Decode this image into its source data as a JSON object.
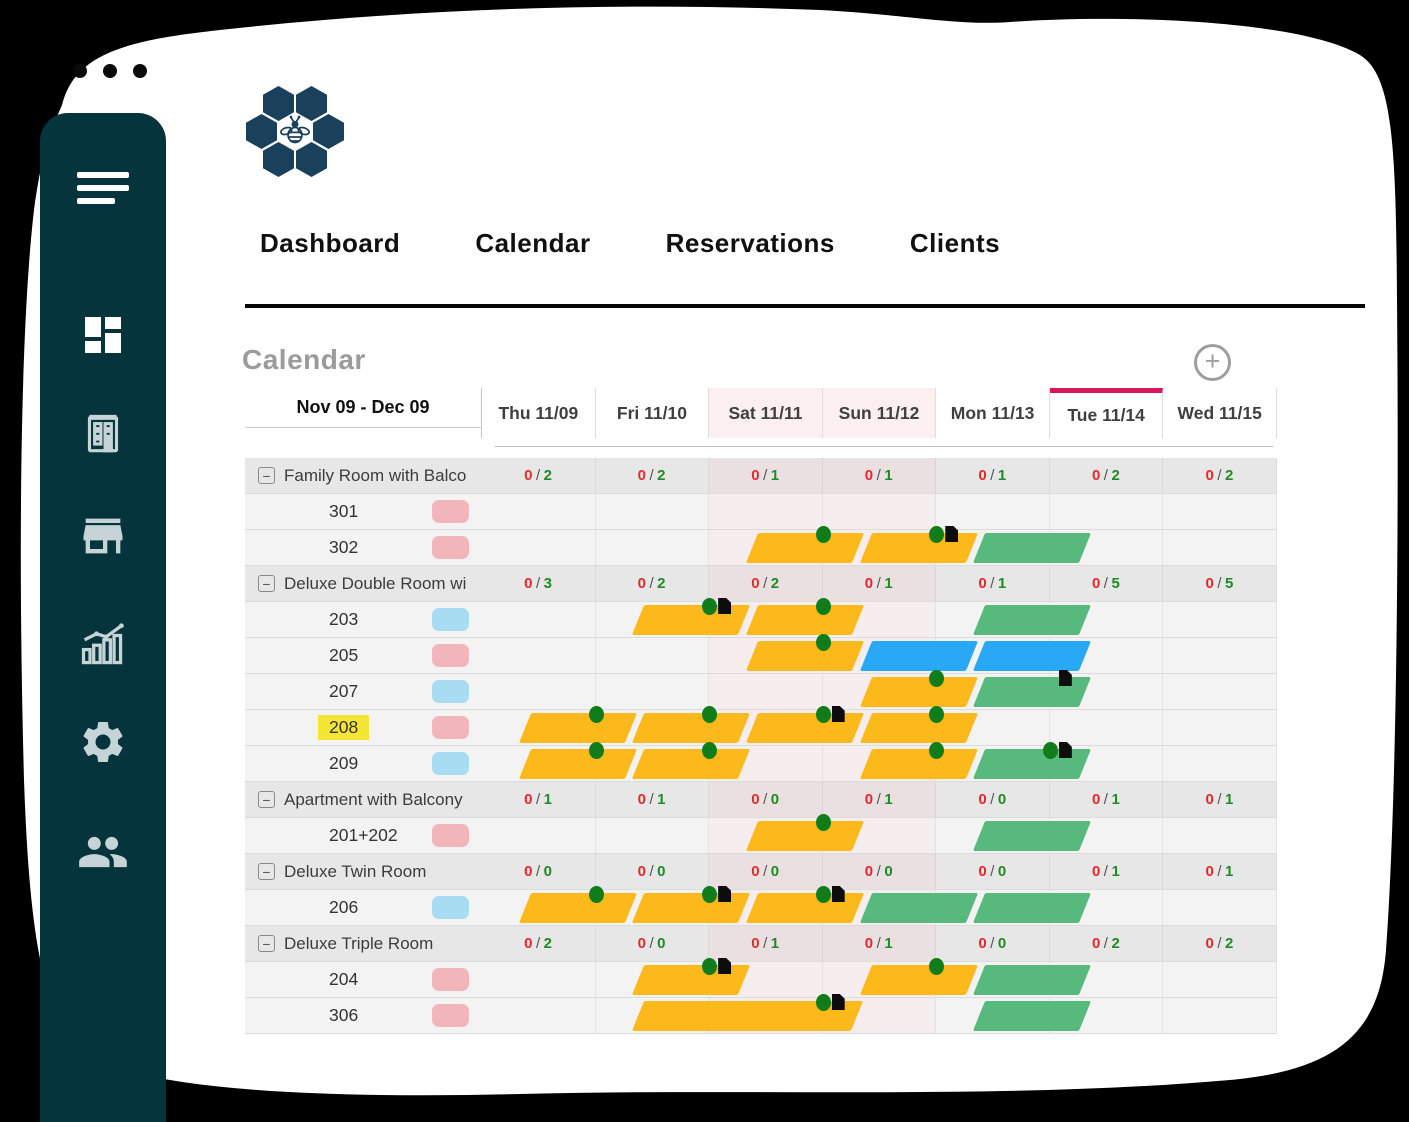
{
  "window": {
    "control_dots": 3
  },
  "nav": {
    "items": [
      {
        "label": "Dashboard"
      },
      {
        "label": "Calendar"
      },
      {
        "label": "Reservations"
      },
      {
        "label": "Clients"
      }
    ]
  },
  "page": {
    "title": "Calendar",
    "add_label": "+"
  },
  "sidebar": {
    "icons": [
      "menu-icon",
      "dashboard-icon",
      "hotel-icon",
      "storefront-icon",
      "analytics-icon",
      "settings-icon",
      "users-icon"
    ]
  },
  "calendar": {
    "range_label": "Nov 09 - Dec 09",
    "collapse_glyph": "−",
    "days": [
      {
        "label": "Thu 11/09",
        "weekend": false,
        "today": false
      },
      {
        "label": "Fri 11/10",
        "weekend": false,
        "today": false
      },
      {
        "label": "Sat 11/11",
        "weekend": true,
        "today": false
      },
      {
        "label": "Sun 11/12",
        "weekend": true,
        "today": false
      },
      {
        "label": "Mon 11/13",
        "weekend": false,
        "today": false
      },
      {
        "label": "Tue 11/14",
        "weekend": false,
        "today": true
      },
      {
        "label": "Wed 11/15",
        "weekend": false,
        "today": false
      }
    ],
    "rows": [
      {
        "type": "group",
        "name": "Family Room with Balco",
        "availability": [
          "0/2",
          "0/2",
          "0/1",
          "0/1",
          "0/1",
          "0/2",
          "0/2"
        ]
      },
      {
        "type": "room",
        "name": "301",
        "badge": "pink",
        "bars": []
      },
      {
        "type": "room",
        "name": "302",
        "badge": "pink",
        "bars": [
          {
            "start": 2,
            "len": 1,
            "color": "yellow",
            "markers": [
              {
                "type": "dot",
                "at": 3
              }
            ]
          },
          {
            "start": 3,
            "len": 1,
            "color": "yellow",
            "markers": [
              {
                "type": "dot",
                "at": 4
              },
              {
                "type": "doc",
                "at": 4
              }
            ]
          },
          {
            "start": 4,
            "len": 1,
            "color": "green",
            "markers": []
          }
        ]
      },
      {
        "type": "group",
        "name": "Deluxe Double Room wi",
        "availability": [
          "0/3",
          "0/2",
          "0/2",
          "0/1",
          "0/1",
          "0/5",
          "0/5"
        ]
      },
      {
        "type": "room",
        "name": "203",
        "badge": "blue",
        "bars": [
          {
            "start": 1,
            "len": 1,
            "color": "yellow",
            "markers": [
              {
                "type": "dot",
                "at": 2
              },
              {
                "type": "doc",
                "at": 2
              }
            ]
          },
          {
            "start": 2,
            "len": 1,
            "color": "yellow",
            "markers": [
              {
                "type": "dot",
                "at": 3
              }
            ]
          },
          {
            "start": 4,
            "len": 1,
            "color": "green",
            "markers": []
          }
        ]
      },
      {
        "type": "room",
        "name": "205",
        "badge": "pink",
        "bars": [
          {
            "start": 2,
            "len": 1,
            "color": "yellow",
            "markers": [
              {
                "type": "dot",
                "at": 3
              }
            ]
          },
          {
            "start": 3,
            "len": 1,
            "color": "blue",
            "markers": []
          },
          {
            "start": 4,
            "len": 1,
            "color": "blue",
            "markers": []
          }
        ]
      },
      {
        "type": "room",
        "name": "207",
        "badge": "blue",
        "bars": [
          {
            "start": 3,
            "len": 1,
            "color": "yellow",
            "markers": [
              {
                "type": "dot",
                "at": 4
              }
            ]
          },
          {
            "start": 4,
            "len": 1,
            "color": "green",
            "markers": [
              {
                "type": "doc",
                "at": 5
              }
            ]
          }
        ]
      },
      {
        "type": "room",
        "name": "208",
        "badge": "pink",
        "highlight": true,
        "bars": [
          {
            "start": 0,
            "len": 1,
            "color": "yellow",
            "markers": [
              {
                "type": "dot",
                "at": 1
              }
            ]
          },
          {
            "start": 1,
            "len": 1,
            "color": "yellow",
            "markers": [
              {
                "type": "dot",
                "at": 2
              }
            ]
          },
          {
            "start": 2,
            "len": 1,
            "color": "yellow",
            "markers": [
              {
                "type": "dot",
                "at": 3
              },
              {
                "type": "doc",
                "at": 3
              }
            ]
          },
          {
            "start": 3,
            "len": 1,
            "color": "yellow",
            "markers": [
              {
                "type": "dot",
                "at": 4
              }
            ]
          }
        ]
      },
      {
        "type": "room",
        "name": "209",
        "badge": "blue",
        "bars": [
          {
            "start": 0,
            "len": 1,
            "color": "yellow",
            "markers": [
              {
                "type": "dot",
                "at": 1
              }
            ]
          },
          {
            "start": 1,
            "len": 1,
            "color": "yellow",
            "markers": [
              {
                "type": "dot",
                "at": 2
              }
            ]
          },
          {
            "start": 3,
            "len": 1,
            "color": "yellow",
            "markers": [
              {
                "type": "dot",
                "at": 4
              }
            ]
          },
          {
            "start": 4,
            "len": 1,
            "color": "green",
            "markers": [
              {
                "type": "dot",
                "at": 5
              },
              {
                "type": "doc",
                "at": 5
              }
            ]
          }
        ]
      },
      {
        "type": "group",
        "name": "Apartment with Balcony",
        "availability": [
          "0/1",
          "0/1",
          "0/0",
          "0/1",
          "0/0",
          "0/1",
          "0/1"
        ]
      },
      {
        "type": "room",
        "name": "201+202",
        "badge": "pink",
        "bars": [
          {
            "start": 2,
            "len": 1,
            "color": "yellow",
            "markers": [
              {
                "type": "dot",
                "at": 3
              }
            ]
          },
          {
            "start": 4,
            "len": 1,
            "color": "green",
            "markers": []
          }
        ]
      },
      {
        "type": "group",
        "name": "Deluxe Twin Room",
        "availability": [
          "0/0",
          "0/0",
          "0/0",
          "0/0",
          "0/0",
          "0/1",
          "0/1"
        ]
      },
      {
        "type": "room",
        "name": "206",
        "badge": "blue",
        "bars": [
          {
            "start": 0,
            "len": 1,
            "color": "yellow",
            "markers": [
              {
                "type": "dot",
                "at": 1
              }
            ]
          },
          {
            "start": 1,
            "len": 1,
            "color": "yellow",
            "markers": [
              {
                "type": "dot",
                "at": 2
              },
              {
                "type": "doc",
                "at": 2
              }
            ]
          },
          {
            "start": 2,
            "len": 1,
            "color": "yellow",
            "markers": [
              {
                "type": "dot",
                "at": 3
              },
              {
                "type": "doc",
                "at": 3
              }
            ]
          },
          {
            "start": 3,
            "len": 1,
            "color": "green",
            "markers": []
          },
          {
            "start": 4,
            "len": 1,
            "color": "green",
            "markers": []
          }
        ]
      },
      {
        "type": "group",
        "name": "Deluxe Triple Room",
        "availability": [
          "0/2",
          "0/0",
          "0/1",
          "0/1",
          "0/0",
          "0/2",
          "0/2"
        ]
      },
      {
        "type": "room",
        "name": "204",
        "badge": "pink",
        "bars": [
          {
            "start": 1,
            "len": 1,
            "color": "yellow",
            "markers": [
              {
                "type": "dot",
                "at": 2
              },
              {
                "type": "doc",
                "at": 2
              }
            ]
          },
          {
            "start": 3,
            "len": 1,
            "color": "yellow",
            "markers": [
              {
                "type": "dot",
                "at": 4
              }
            ]
          },
          {
            "start": 4,
            "len": 1,
            "color": "green",
            "markers": []
          }
        ]
      },
      {
        "type": "room",
        "name": "306",
        "badge": "pink",
        "bars": [
          {
            "start": 1,
            "len": 2,
            "color": "yellow",
            "markers": [
              {
                "type": "dot",
                "at": 3
              },
              {
                "type": "doc",
                "at": 3
              }
            ]
          },
          {
            "start": 4,
            "len": 1,
            "color": "green",
            "markers": []
          }
        ]
      }
    ]
  },
  "colors": {
    "accent_pink": "#D81760",
    "bar_yellow": "#FBB91C",
    "bar_green": "#57B97B",
    "bar_blue": "#29A9F5",
    "dot_green": "#107D1A",
    "avail_red": "#E8272C",
    "avail_green": "#1F8B26",
    "sidebar_teal": "#06343D",
    "logo_navy": "#1A405C",
    "badge_pink": "#F2B6BA",
    "badge_blue": "#A8DCF2",
    "room_highlight": "#F5E636"
  }
}
